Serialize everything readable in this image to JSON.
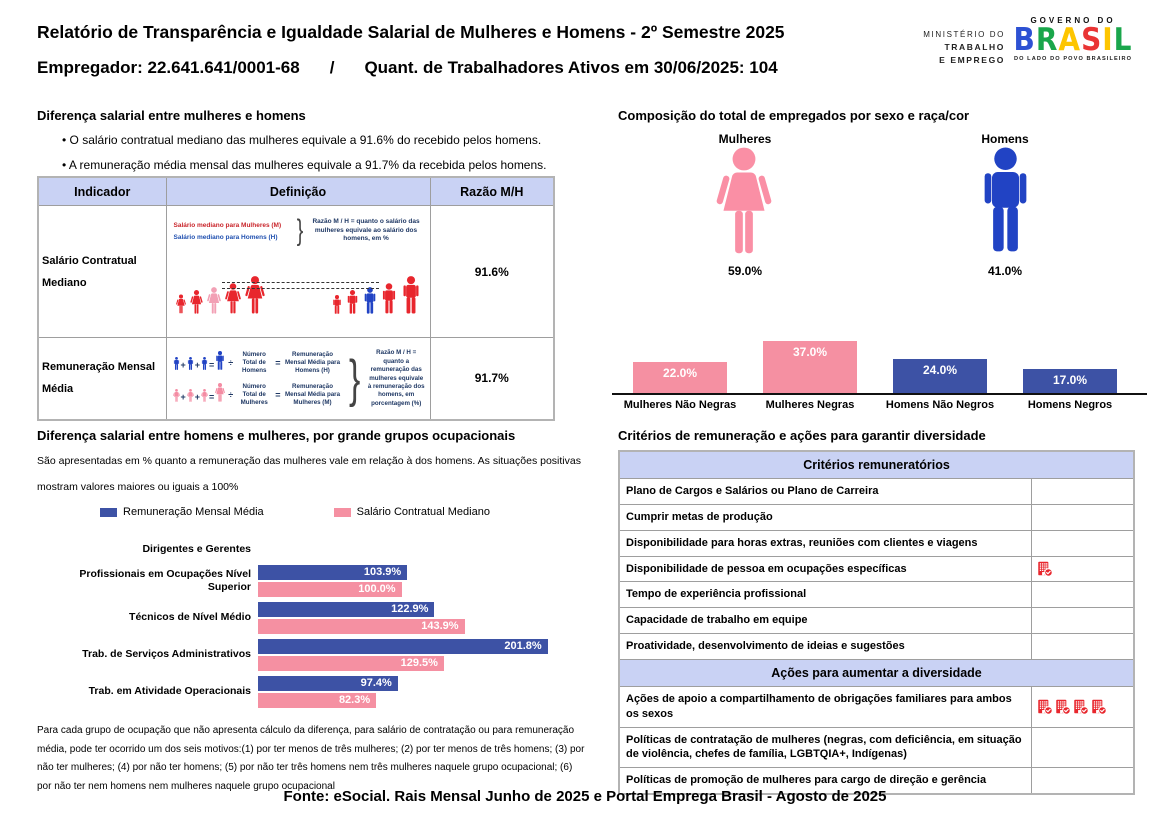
{
  "header": {
    "title": "Relatório de Transparência e Igualdade Salarial de Mulheres e Homens - 2º Semestre 2025",
    "subtitle_employer": "Empregador: 22.641.641/0001-68",
    "subtitle_separator": "/",
    "subtitle_workers": "Quant. de Trabalhadores Ativos em 30/06/2025: 104"
  },
  "ministry": {
    "line1": "MINISTÉRIO DO",
    "line2": "TRABALHO",
    "line3": "E EMPREGO"
  },
  "gov_logo": {
    "top": "GOVERNO DO",
    "brand": "BRASIL",
    "brand_letters": [
      {
        "ch": "B",
        "color": "#2d51d3"
      },
      {
        "ch": "R",
        "color": "#1aa64b"
      },
      {
        "ch": "A",
        "color": "#fdc500"
      },
      {
        "ch": "S",
        "color": "#e93434"
      },
      {
        "ch": "I",
        "color": "#fdc500"
      },
      {
        "ch": "L",
        "color": "#1aa64b"
      }
    ],
    "tagline": "DO LADO DO POVO BRASILEIRO"
  },
  "salary_diff": {
    "title": "Diferença salarial entre mulheres e homens",
    "bullets": [
      "O salário contratual mediano das mulheres equivale a 91.6% do recebido pelos homens.",
      "A remuneração média mensal das mulheres equivale a 91.7% da recebida pelos homens."
    ],
    "table": {
      "headers": [
        "Indicador",
        "Definição",
        "Razão M/H"
      ],
      "rows": [
        {
          "indicator": "Salário Contratual Mediano",
          "ratio": "91.6%"
        },
        {
          "indicator": "Remuneração Mensal Média",
          "ratio": "91.7%"
        }
      ]
    },
    "diagram1": {
      "label_women": "Salário mediano para Mulheres (M)",
      "label_men": "Salário mediano para Homens (H)",
      "explanation": "Razão M / H = quanto o salário das mulheres equivale ao salário dos homens, em %"
    },
    "diagram2": {
      "row_men": {
        "divisor": "Número Total de Homens",
        "result": "Remuneração Mensal Média para Homens (H)"
      },
      "row_women": {
        "divisor": "Número Total de Mulheres",
        "result": "Remuneração Mensal Média para Mulheres (M)"
      },
      "explanation": "Razão M / H = quanto a remuneração das mulheres equivale à remuneração dos homens, em porcentagem (%)"
    }
  },
  "occupational": {
    "title": "Diferença salarial entre homens e mulheres, por grande grupos ocupacionais",
    "subtitle_line1": "São apresentadas em % quanto a remuneração das mulheres vale em relação à dos homens. As situações positivas",
    "subtitle_line2": "mostram valores maiores ou iguais a 100%",
    "footnote": "Para cada grupo de ocupação que não apresenta cálculo da diferença, para salário de contratação ou para remuneração média, pode ter ocorrido um dos seis motivos:(1) por ter menos de três mulheres; (2) por ter menos de três homens; (3) por não ter mulheres; (4) por não ter homens; (5) por não ter três homens nem três mulheres naquele grupo ocupacional; (6) por não ter nem homens nem mulheres naquele grupo ocupacional"
  },
  "composition": {
    "title": "Composição do total de empregados por sexo e raça/cor",
    "women_label": "Mulheres",
    "men_label": "Homens",
    "women_pct": "59.0%",
    "men_pct": "41.0%"
  },
  "criteria": {
    "title": "Critérios de remuneração e ações para garantir diversidade",
    "section1_header": "Critérios remuneratórios",
    "section1_rows": [
      {
        "label": "Plano de Cargos e Salários ou Plano de Carreira",
        "icons": 0
      },
      {
        "label": "Cumprir metas de produção",
        "icons": 0
      },
      {
        "label": "Disponibilidade para horas extras, reuniões com clientes e viagens",
        "icons": 0
      },
      {
        "label": "Disponibilidade de pessoa em ocupações específicas",
        "icons": 1
      },
      {
        "label": "Tempo de experiência profissional",
        "icons": 0
      },
      {
        "label": "Capacidade de trabalho em equipe",
        "icons": 0
      },
      {
        "label": "Proatividade, desenvolvimento de ideias e sugestões",
        "icons": 0
      }
    ],
    "section2_header": "Ações para aumentar a diversidade",
    "section2_rows": [
      {
        "label": "Ações de apoio a compartilhamento de obrigações familiares para ambos os sexos",
        "icons": 4
      },
      {
        "label": "Políticas de contratação de mulheres (negras, com deficiência, em situação de violência, chefes de família, LGBTQIA+, Indígenas)",
        "icons": 0
      },
      {
        "label": "Políticas de promoção de mulheres para cargo de direção e gerência",
        "icons": 0
      }
    ]
  },
  "footer": "Fonte: eSocial. Rais Mensal Junho de 2025 e Portal Emprega Brasil - Agosto de 2025",
  "colors": {
    "blue_bar": "#3d52a5",
    "pink_bar": "#f590a2",
    "man_blue": "#2143c4",
    "woman_pink": "#fa8fa5",
    "red_accent": "#e8262d",
    "table_header_bg": "#c9d2f4",
    "navy_text": "#1f3864"
  },
  "chart_data": [
    {
      "type": "pictogram",
      "title": "Composição do total de empregados por sexo e raça/cor",
      "categories": [
        "Mulheres",
        "Homens"
      ],
      "values": [
        59.0,
        41.0
      ],
      "unit": "%"
    },
    {
      "type": "bar",
      "categories": [
        "Mulheres Não Negras",
        "Mulheres Negras",
        "Homens Não Negros",
        "Homens Negros"
      ],
      "values": [
        22.0,
        37.0,
        24.0,
        17.0
      ],
      "unit": "%",
      "bar_colors": [
        "#f590a2",
        "#f590a2",
        "#3d52a5",
        "#3d52a5"
      ],
      "ylim": [
        0,
        40
      ],
      "grid": false
    },
    {
      "type": "bar",
      "orientation": "horizontal",
      "title": "Diferença salarial entre homens e mulheres, por grande grupos ocupacionais",
      "categories": [
        "Dirigentes e Gerentes",
        "Profissionais em Ocupações Nível Superior",
        "Técnicos de Nível Médio",
        "Trab. de Serviços Administrativos",
        "Trab. em Atividade Operacionais"
      ],
      "series": [
        {
          "name": "Remuneração Mensal Média",
          "color": "#3d52a5",
          "values": [
            null,
            103.9,
            122.9,
            201.8,
            97.4
          ]
        },
        {
          "name": "Salário Contratual Mediano",
          "color": "#f590a2",
          "values": [
            null,
            100.0,
            143.9,
            129.5,
            82.3
          ]
        }
      ],
      "unit": "%",
      "xlim": [
        0,
        210
      ],
      "legend_position": "top"
    }
  ]
}
